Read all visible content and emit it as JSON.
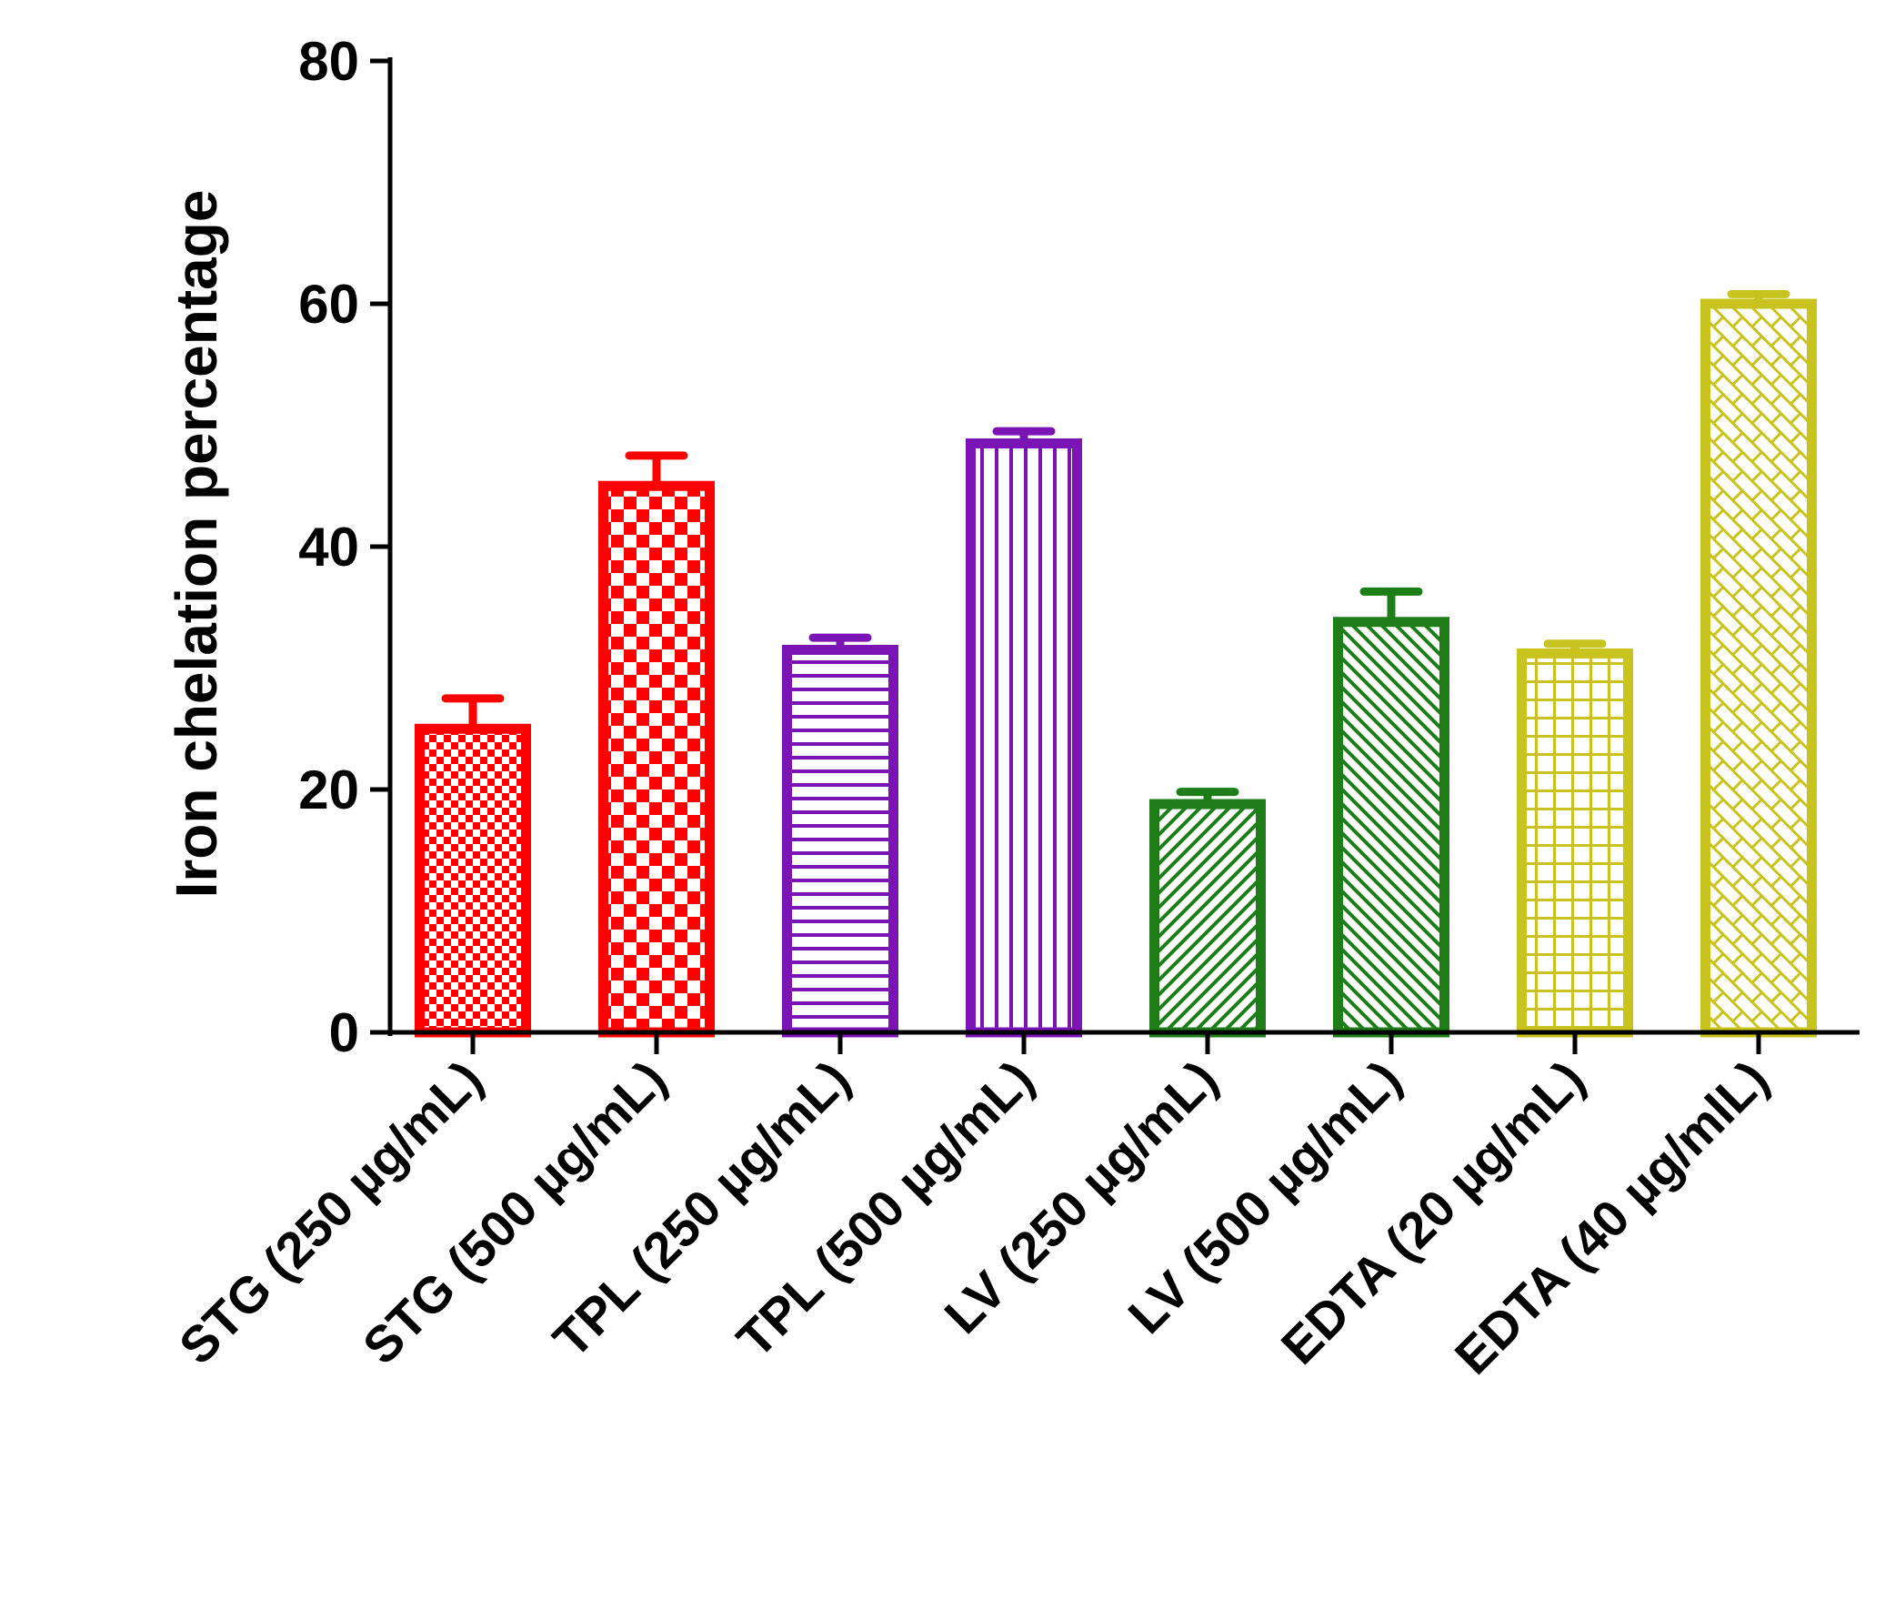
{
  "chart_data": {
    "type": "bar",
    "title": "",
    "xlabel": "",
    "ylabel": "Iron chelation percentage",
    "ylim": [
      0,
      80
    ],
    "yticks": [
      0,
      20,
      40,
      60,
      80
    ],
    "grid": false,
    "categories": [
      "STG (250 µg/mL)",
      "STG (500 µg/mL)",
      "TPL (250 µg/mL)",
      "TPL (500 µg/mL)",
      "LV (250 µg/mL)",
      "LV (500 µg/mL)",
      "EDTA (20 µg/mL)",
      "EDTA (40 µg/mlL)"
    ],
    "values": [
      25,
      45,
      31.5,
      48.5,
      18.8,
      33.8,
      31.2,
      60
    ],
    "errors": [
      2.5,
      2.5,
      1,
      1,
      1,
      2.5,
      0.8,
      0.8
    ],
    "colors": [
      "#ff0000",
      "#ff0000",
      "#7a14b4",
      "#7a14b4",
      "#1e7d18",
      "#1e7d18",
      "#c8c31e",
      "#c8c31e"
    ],
    "patterns": [
      "fine-checker",
      "checker",
      "horizontal-lines",
      "vertical-lines",
      "diagonal-lines",
      "diagonal-lines-back",
      "grid",
      "brick-diagonal"
    ]
  }
}
